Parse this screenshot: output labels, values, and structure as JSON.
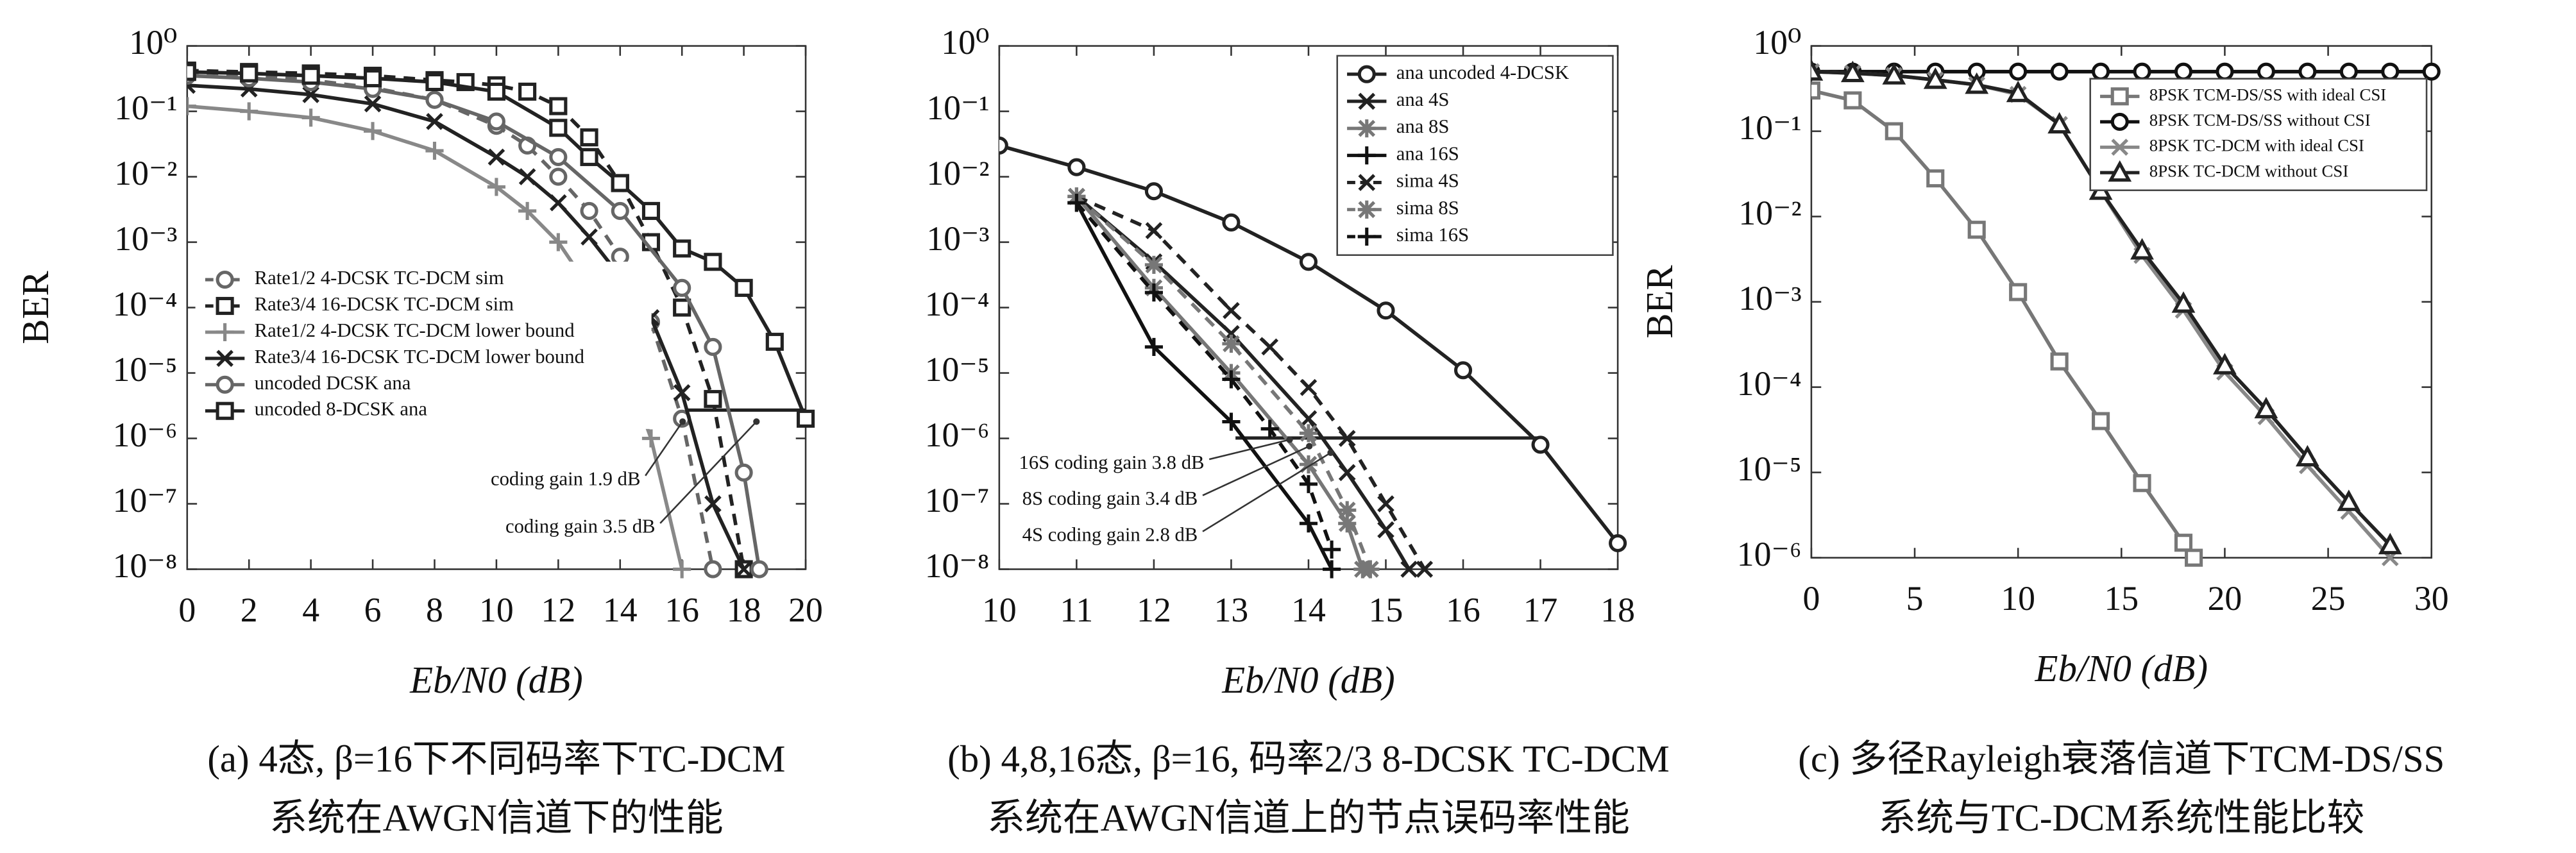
{
  "chart_data": [
    {
      "type": "line",
      "ylabel": "BER",
      "xlabel": "Eb/N0 (dB)",
      "log_y": true,
      "legend": "center left",
      "caption": [
        "(a) 4态, β=16下不同码率下TC-DCM",
        "系统在AWGN信道下的性能"
      ],
      "xlim": [
        0,
        20
      ],
      "xticks": [
        0,
        2,
        4,
        6,
        8,
        10,
        12,
        14,
        16,
        18,
        20
      ],
      "ylim": [
        1e-08,
        1
      ],
      "yticks": [
        {
          "value": 1e-08,
          "label": "10⁻⁸"
        },
        {
          "value": 1e-07,
          "label": "10⁻⁷"
        },
        {
          "value": 1e-06,
          "label": "10⁻⁶"
        },
        {
          "value": 1e-05,
          "label": "10⁻⁵"
        },
        {
          "value": 0.0001,
          "label": "10⁻⁴"
        },
        {
          "value": 0.001,
          "label": "10⁻³"
        },
        {
          "value": 0.01,
          "label": "10⁻²"
        },
        {
          "value": 0.1,
          "label": "10⁻¹"
        },
        {
          "value": 1,
          "label": "10⁰"
        }
      ],
      "annotations": [
        "coding gain 1.9 dB",
        "coding gain 3.5 dB"
      ],
      "series": [
        {
          "name": "Rate1/2 4-DCSK TC-DCM sim",
          "color": "#666666",
          "dashed": true,
          "marker": "circle",
          "x": [
            0,
            2,
            4,
            6,
            8,
            10,
            11,
            12,
            13,
            14,
            15,
            16,
            17
          ],
          "values": [
            0.4,
            0.36,
            0.3,
            0.23,
            0.15,
            0.06,
            0.03,
            0.01,
            0.003,
            0.0006,
            6e-05,
            2e-06,
            1e-08
          ]
        },
        {
          "name": "Rate3/4 16-DCSK TC-DCM sim",
          "color": "#222222",
          "dashed": true,
          "marker": "square",
          "x": [
            0,
            2,
            4,
            6,
            8,
            9,
            10,
            11,
            12,
            13,
            14,
            15,
            16,
            17,
            18
          ],
          "values": [
            0.42,
            0.4,
            0.38,
            0.35,
            0.3,
            0.28,
            0.25,
            0.2,
            0.12,
            0.04,
            0.008,
            0.001,
            0.0001,
            4e-06,
            1e-08
          ]
        },
        {
          "name": "Rate1/2 4-DCSK TC-DCM lower bound",
          "color": "#888888",
          "dashed": false,
          "marker": "plus",
          "x": [
            0,
            2,
            4,
            6,
            8,
            10,
            11,
            12,
            13,
            14,
            15,
            16
          ],
          "values": [
            0.12,
            0.1,
            0.08,
            0.05,
            0.025,
            0.007,
            0.003,
            0.001,
            0.0002,
            2e-05,
            1e-06,
            1e-08
          ]
        },
        {
          "name": "Rate3/4 16-DCSK TC-DCM lower bound",
          "color": "#222222",
          "dashed": false,
          "marker": "x",
          "x": [
            0,
            2,
            4,
            6,
            8,
            10,
            11,
            12,
            13,
            14,
            15,
            16,
            17,
            18
          ],
          "values": [
            0.25,
            0.22,
            0.18,
            0.13,
            0.07,
            0.02,
            0.01,
            0.004,
            0.0012,
            0.0003,
            7e-05,
            5e-06,
            1e-07,
            1e-08
          ]
        },
        {
          "name": "uncoded DCSK ana",
          "color": "#666666",
          "dashed": false,
          "marker": "circle",
          "x": [
            0,
            2,
            4,
            6,
            8,
            10,
            12,
            14,
            16,
            17,
            18,
            18.5
          ],
          "values": [
            0.35,
            0.32,
            0.28,
            0.22,
            0.15,
            0.07,
            0.02,
            0.003,
            0.0002,
            2.5e-05,
            3e-07,
            1e-08
          ]
        },
        {
          "name": "uncoded 8-DCSK ana",
          "color": "#222222",
          "dashed": false,
          "marker": "square",
          "x": [
            0,
            2,
            4,
            6,
            8,
            10,
            12,
            13,
            14,
            15,
            16,
            17,
            18,
            19,
            20
          ],
          "values": [
            0.4,
            0.38,
            0.35,
            0.32,
            0.28,
            0.2,
            0.056,
            0.02,
            0.008,
            0.003,
            0.0008,
            0.0005,
            0.0002,
            3e-05,
            2e-06
          ]
        }
      ]
    },
    {
      "type": "line",
      "ylabel": "",
      "xlabel": "Eb/N0 (dB)",
      "log_y": true,
      "legend": "upper right",
      "caption": [
        "(b) 4,8,16态, β=16, 码率2/3 8-DCSK TC-DCM",
        "系统在AWGN信道上的节点误码率性能"
      ],
      "xlim": [
        10,
        18
      ],
      "xticks": [
        10,
        11,
        12,
        13,
        14,
        15,
        16,
        17,
        18
      ],
      "ylim": [
        1e-08,
        1
      ],
      "yticks": [
        {
          "value": 1e-08,
          "label": "10⁻⁸"
        },
        {
          "value": 1e-07,
          "label": "10⁻⁷"
        },
        {
          "value": 1e-06,
          "label": "10⁻⁶"
        },
        {
          "value": 1e-05,
          "label": "10⁻⁵"
        },
        {
          "value": 0.0001,
          "label": "10⁻⁴"
        },
        {
          "value": 0.001,
          "label": "10⁻³"
        },
        {
          "value": 0.01,
          "label": "10⁻²"
        },
        {
          "value": 0.1,
          "label": "10⁻¹"
        },
        {
          "value": 1,
          "label": "10⁰"
        }
      ],
      "annotations": [
        "16S coding gain 3.8 dB",
        "8S coding gain 3.4 dB",
        "4S coding gain 2.8 dB"
      ],
      "series": [
        {
          "name": "ana uncoded 4-DCSK",
          "color": "#222222",
          "dashed": false,
          "marker": "circle",
          "x": [
            10,
            11,
            12,
            13,
            14,
            15,
            16,
            17,
            18
          ],
          "values": [
            0.03,
            0.014,
            0.006,
            0.002,
            0.0005,
            9e-05,
            1.1e-05,
            8e-07,
            2.5e-08
          ]
        },
        {
          "name": "ana 4S",
          "color": "#222222",
          "dashed": false,
          "marker": "x",
          "x": [
            11,
            12,
            13,
            14,
            14.5,
            15,
            15.3
          ],
          "values": [
            0.005,
            0.0005,
            4e-05,
            2e-06,
            3e-07,
            4e-08,
            1e-08
          ]
        },
        {
          "name": "ana 8S",
          "color": "#777777",
          "dashed": false,
          "marker": "star",
          "x": [
            11,
            12,
            13,
            14,
            14.5,
            14.7
          ],
          "values": [
            0.005,
            0.0002,
            1e-05,
            4e-07,
            5e-08,
            1e-08
          ]
        },
        {
          "name": "ana 16S",
          "color": "#111111",
          "dashed": false,
          "marker": "plus",
          "x": [
            11,
            12,
            13,
            14,
            14.3
          ],
          "values": [
            0.004,
            2.5e-05,
            1.8e-06,
            5e-08,
            1e-08
          ]
        },
        {
          "name": "sima 4S",
          "color": "#222222",
          "dashed": true,
          "marker": "x",
          "x": [
            11,
            12,
            13,
            13.5,
            14,
            14.5,
            15,
            15.5
          ],
          "values": [
            0.005,
            0.0015,
            9e-05,
            2.5e-05,
            6e-06,
            1e-06,
            1e-07,
            1e-08
          ]
        },
        {
          "name": "sima 8S",
          "color": "#777777",
          "dashed": true,
          "marker": "star",
          "x": [
            11,
            12,
            13,
            14,
            14.5,
            14.8
          ],
          "values": [
            0.005,
            0.00045,
            2.8e-05,
            1.2e-06,
            8e-08,
            1e-08
          ]
        },
        {
          "name": "sima 16S",
          "color": "#111111",
          "dashed": true,
          "marker": "plus",
          "x": [
            11,
            12,
            13,
            13.5,
            14,
            14.3
          ],
          "values": [
            0.004,
            0.00017,
            8e-06,
            1.4e-06,
            2e-07,
            2e-08
          ]
        }
      ]
    },
    {
      "type": "line",
      "ylabel": "BER",
      "xlabel": "Eb/N0 (dB)",
      "log_y": true,
      "legend": "upper right",
      "caption": [
        "(c) 多径Rayleigh衰落信道下TCM-DS/SS",
        "系统与TC-DCM系统性能比较"
      ],
      "xlim": [
        0,
        30
      ],
      "xticks": [
        0,
        5,
        10,
        15,
        20,
        25,
        30
      ],
      "ylim": [
        1e-06,
        1
      ],
      "yticks": [
        {
          "value": 1e-06,
          "label": "10⁻⁶"
        },
        {
          "value": 1e-05,
          "label": "10⁻⁵"
        },
        {
          "value": 0.0001,
          "label": "10⁻⁴"
        },
        {
          "value": 0.001,
          "label": "10⁻³"
        },
        {
          "value": 0.01,
          "label": "10⁻²"
        },
        {
          "value": 0.1,
          "label": "10⁻¹"
        },
        {
          "value": 1,
          "label": "10⁰"
        }
      ],
      "annotations": [],
      "series": [
        {
          "name": "8PSK TCM-DS/SS with ideal CSI",
          "color": "#777777",
          "dashed": false,
          "marker": "square",
          "x": [
            0,
            2,
            4,
            6,
            8,
            10,
            12,
            14,
            16,
            18,
            18.5
          ],
          "values": [
            0.3,
            0.23,
            0.1,
            0.028,
            0.007,
            0.0013,
            0.0002,
            4e-05,
            7.5e-06,
            1.5e-06,
            1e-06
          ]
        },
        {
          "name": "8PSK TCM-DS/SS without CSI",
          "color": "#111111",
          "dashed": false,
          "marker": "circle",
          "x": [
            0,
            2,
            4,
            6,
            8,
            10,
            12,
            14,
            16,
            18,
            20,
            22,
            24,
            26,
            28,
            30
          ],
          "values": [
            0.5,
            0.5,
            0.5,
            0.5,
            0.5,
            0.5,
            0.5,
            0.5,
            0.5,
            0.5,
            0.5,
            0.5,
            0.5,
            0.5,
            0.5,
            0.5
          ]
        },
        {
          "name": "8PSK TC-DCM with ideal CSI",
          "color": "#888888",
          "dashed": false,
          "marker": "x",
          "x": [
            0,
            2,
            4,
            6,
            8,
            10,
            12,
            14,
            16,
            18,
            20,
            22,
            24,
            26,
            28
          ],
          "values": [
            0.5,
            0.48,
            0.45,
            0.4,
            0.35,
            0.27,
            0.12,
            0.02,
            0.0035,
            0.0008,
            0.00015,
            4.5e-05,
            1.2e-05,
            3.5e-06,
            1e-06
          ]
        },
        {
          "name": "8PSK TC-DCM without CSI",
          "color": "#222222",
          "dashed": false,
          "marker": "triangle",
          "x": [
            0,
            2,
            4,
            6,
            8,
            10,
            12,
            14,
            16,
            18,
            20,
            22,
            24,
            26,
            28
          ],
          "values": [
            0.5,
            0.48,
            0.45,
            0.4,
            0.35,
            0.28,
            0.12,
            0.02,
            0.004,
            0.00095,
            0.00018,
            5.5e-05,
            1.5e-05,
            4.5e-06,
            1.4e-06
          ]
        }
      ]
    }
  ]
}
